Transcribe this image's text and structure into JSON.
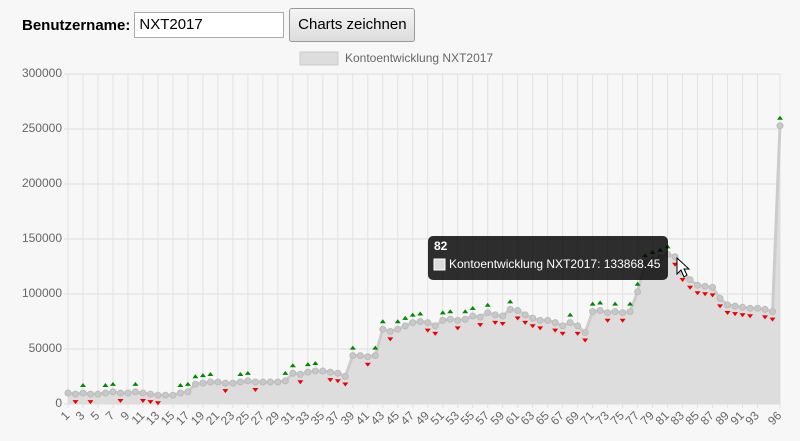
{
  "form": {
    "label": "Benutzername:",
    "input_value": "NXT2017",
    "button": "Charts zeichnen"
  },
  "chart_data": {
    "type": "line",
    "categories": [
      "1",
      null,
      "3",
      null,
      "5",
      null,
      "7",
      null,
      "9",
      null,
      "11",
      null,
      "13",
      null,
      "15",
      null,
      "17",
      null,
      "19",
      null,
      "21",
      null,
      "23",
      null,
      "25",
      null,
      "27",
      null,
      "29",
      null,
      "31",
      null,
      "33",
      null,
      "35",
      null,
      "37",
      null,
      "39",
      null,
      "41",
      null,
      "43",
      null,
      "45",
      null,
      "47",
      null,
      "49",
      null,
      "51",
      null,
      "53",
      null,
      "55",
      null,
      "57",
      null,
      "59",
      null,
      "61",
      null,
      "63",
      null,
      "65",
      null,
      "67",
      null,
      "69",
      null,
      "71",
      null,
      "73",
      null,
      "75",
      null,
      "77",
      null,
      "79",
      null,
      "81",
      null,
      "83",
      null,
      "85",
      null,
      "87",
      null,
      "89",
      null,
      "91",
      null,
      "93",
      null,
      null,
      "96"
    ],
    "series": [
      {
        "name": "Kontoentwicklung NXT2017",
        "color": "#cccccc",
        "fill": "#dddddd",
        "values": [
          10000,
          9000,
          10000,
          9000,
          9000,
          10000,
          11000,
          10000,
          10000,
          11000,
          10000,
          9000,
          8000,
          8000,
          8000,
          10000,
          11000,
          18000,
          19000,
          20000,
          20000,
          19000,
          19000,
          20000,
          21000,
          20000,
          20000,
          20000,
          20000,
          21000,
          28000,
          27000,
          29000,
          30000,
          30000,
          29000,
          28000,
          25000,
          44000,
          44000,
          43000,
          44000,
          68000,
          66000,
          68000,
          71000,
          74000,
          75000,
          74000,
          71000,
          76000,
          77000,
          76000,
          77000,
          80000,
          79000,
          83000,
          81000,
          80000,
          86000,
          85000,
          81000,
          78000,
          76000,
          76000,
          74000,
          71000,
          74000,
          71000,
          65000,
          84000,
          85000,
          83000,
          84000,
          83000,
          84000,
          102000,
          128000,
          131000,
          133000,
          136000,
          133868.45,
          120000,
          113000,
          108000,
          107000,
          106000,
          96000,
          90000,
          89000,
          88000,
          87000,
          87000,
          86000,
          84000,
          253000
        ]
      }
    ],
    "ylim": [
      0,
      300000
    ],
    "yticks": [
      0,
      50000,
      100000,
      150000,
      200000,
      250000,
      300000
    ],
    "grid": true,
    "tooltip": {
      "title": "82",
      "text": "Kontoentwicklung NXT2017: 133868.45"
    }
  }
}
